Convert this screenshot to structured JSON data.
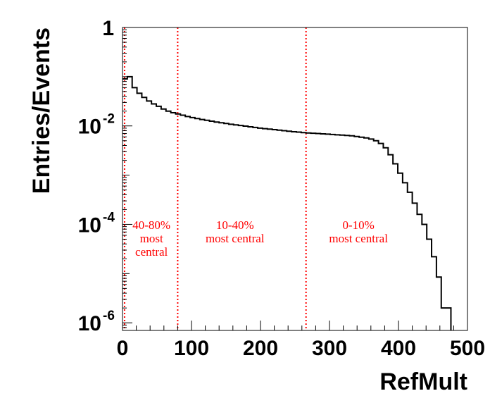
{
  "chart_data": {
    "type": "histogram",
    "xlabel": "RefMult",
    "ylabel": "Entries/Events",
    "xlim": [
      0,
      500
    ],
    "ylim": [
      7e-07,
      1
    ],
    "y_scale": "log",
    "x_ticks": [
      "0",
      "100",
      "200",
      "300",
      "400",
      "500"
    ],
    "y_ticks": [
      {
        "value": 1,
        "label": "1"
      },
      {
        "value": 0.01,
        "label": "10",
        "exp": "-2"
      },
      {
        "value": 0.0001,
        "label": "10",
        "exp": "-4"
      },
      {
        "value": 1e-06,
        "label": "10",
        "exp": "-6"
      }
    ],
    "centrality_cuts": [
      {
        "x": 3
      },
      {
        "x": 80
      },
      {
        "x": 266
      }
    ],
    "annotations": [
      {
        "lines": [
          "40-80%",
          "most",
          "central"
        ],
        "x": 42,
        "y": 8e-05
      },
      {
        "lines": [
          "10-40%",
          "most central"
        ],
        "x": 163,
        "y": 8e-05
      },
      {
        "lines": [
          "0-10%",
          "most central"
        ],
        "x": 342,
        "y": 8e-05
      }
    ],
    "series": [
      {
        "bin_width": 7,
        "bin_start": 0,
        "values": [
          0.09,
          0.1,
          0.06,
          0.046,
          0.038,
          0.032,
          0.028,
          0.025,
          0.022,
          0.02,
          0.0185,
          0.0175,
          0.0165,
          0.0155,
          0.0148,
          0.0141,
          0.0135,
          0.013,
          0.0125,
          0.012,
          0.0116,
          0.0112,
          0.0108,
          0.0105,
          0.0102,
          0.0099,
          0.0096,
          0.0093,
          0.009,
          0.0088,
          0.0086,
          0.0084,
          0.0082,
          0.008,
          0.0078,
          0.0076,
          0.0075,
          0.0073,
          0.0072,
          0.0071,
          0.007,
          0.0069,
          0.0068,
          0.0067,
          0.0066,
          0.0065,
          0.0064,
          0.0063,
          0.0061,
          0.0059,
          0.0057,
          0.0054,
          0.005,
          0.0044,
          0.0036,
          0.0026,
          0.0017,
          0.0011,
          0.0007,
          0.00045,
          0.00027,
          0.00016,
          0.0001,
          5e-05,
          2.2e-05,
          8.5e-06,
          2e-06,
          2e-06
        ]
      }
    ]
  }
}
